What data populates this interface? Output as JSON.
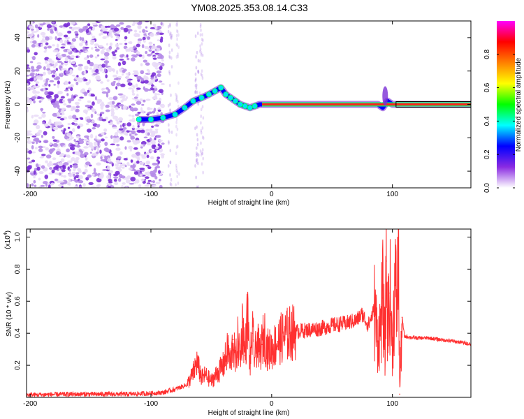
{
  "title": "YM08.2025.353.08.14.C33",
  "chart_data": [
    {
      "type": "heatmap",
      "xlabel": "Height of straight line (km)",
      "ylabel": "Frequency (Hz)",
      "xlim": [
        -203,
        165
      ],
      "ylim": [
        -50,
        50
      ],
      "xticks": [
        -200,
        -100,
        0,
        100
      ],
      "xtick_labels": [
        "-200",
        "-100",
        "0",
        "100"
      ],
      "yticks": [
        -40,
        -20,
        0,
        20,
        40
      ],
      "ytick_labels": [
        "-40",
        "-20",
        "0",
        "20",
        "40"
      ],
      "noise_region_x": [
        -203,
        -90
      ],
      "ridge": {
        "x": [
          -110,
          -100,
          -90,
          -80,
          -72,
          -65,
          -58,
          -52,
          -47,
          -42,
          -38,
          -34,
          -30,
          -26,
          -22,
          -18,
          -14,
          -10,
          0,
          20,
          40,
          60,
          80,
          88,
          92,
          96,
          100,
          104,
          110,
          130,
          150,
          165
        ],
        "y": [
          -9,
          -9,
          -8,
          -6,
          -2,
          2,
          4,
          6,
          8,
          10,
          6,
          4,
          2,
          0,
          -1,
          -2,
          -1,
          0,
          0,
          0,
          0,
          0,
          0,
          0,
          -2,
          2,
          0,
          0,
          0,
          0,
          0,
          0
        ]
      },
      "colorbar": {
        "label": "Normalized spectral amplitude",
        "range": [
          0,
          1
        ],
        "ticks": [
          0.0,
          0.2,
          0.4,
          0.6,
          0.8
        ],
        "tick_labels": [
          "0.0",
          "0.2",
          "0.4",
          "0.6",
          "0.8"
        ],
        "colors": [
          "#ffffff",
          "#8a2be2",
          "#0000ff",
          "#00ffff",
          "#00ff00",
          "#ffff00",
          "#ff8000",
          "#ff0000",
          "#ff00ff"
        ]
      }
    },
    {
      "type": "line",
      "xlabel": "Height of straight line (km)",
      "ylabel": "SNR (10 * v/v)",
      "scale_label": "(x10",
      "scale_exp": "4",
      "scale_close": ")",
      "xlim": [
        -203,
        165
      ],
      "ylim": [
        0,
        1.05
      ],
      "xticks": [
        -200,
        -100,
        0,
        100
      ],
      "xtick_labels": [
        "-200",
        "-100",
        "0",
        "100"
      ],
      "yticks": [
        0.2,
        0.4,
        0.6,
        0.8,
        1.0
      ],
      "ytick_labels": [
        "0.2",
        "0.4",
        "0.6",
        "0.8",
        "1.0"
      ],
      "series": [
        {
          "name": "SNR",
          "color": "#ff3030",
          "x": [
            -203,
            -180,
            -160,
            -140,
            -120,
            -100,
            -90,
            -80,
            -70,
            -65,
            -62,
            -58,
            -55,
            -50,
            -45,
            -40,
            -36,
            -34,
            -32,
            -30,
            -28,
            -26,
            -24,
            -22,
            -20,
            -18,
            -16,
            -14,
            -12,
            -10,
            -8,
            -6,
            -4,
            -2,
            0,
            5,
            10,
            15,
            20,
            30,
            40,
            50,
            60,
            70,
            75,
            80,
            85,
            88,
            90,
            92,
            94,
            95,
            96,
            98,
            100,
            102,
            104,
            105,
            106,
            108,
            110,
            120,
            130,
            140,
            150,
            160,
            165
          ],
          "y": [
            0.015,
            0.018,
            0.02,
            0.02,
            0.02,
            0.025,
            0.03,
            0.05,
            0.08,
            0.15,
            0.22,
            0.12,
            0.14,
            0.1,
            0.15,
            0.2,
            0.3,
            0.2,
            0.36,
            0.22,
            0.35,
            0.25,
            0.47,
            0.26,
            0.52,
            0.2,
            0.4,
            0.25,
            0.35,
            0.27,
            0.33,
            0.4,
            0.3,
            0.3,
            0.3,
            0.35,
            0.38,
            0.4,
            0.41,
            0.42,
            0.43,
            0.45,
            0.46,
            0.48,
            0.52,
            0.45,
            0.55,
            0.35,
            0.42,
            0.62,
            0.3,
            0.85,
            0.45,
            0.65,
            0.3,
            0.7,
            0.55,
            1.06,
            0.02,
            0.5,
            0.38,
            0.37,
            0.37,
            0.36,
            0.35,
            0.34,
            0.33
          ]
        }
      ]
    }
  ]
}
